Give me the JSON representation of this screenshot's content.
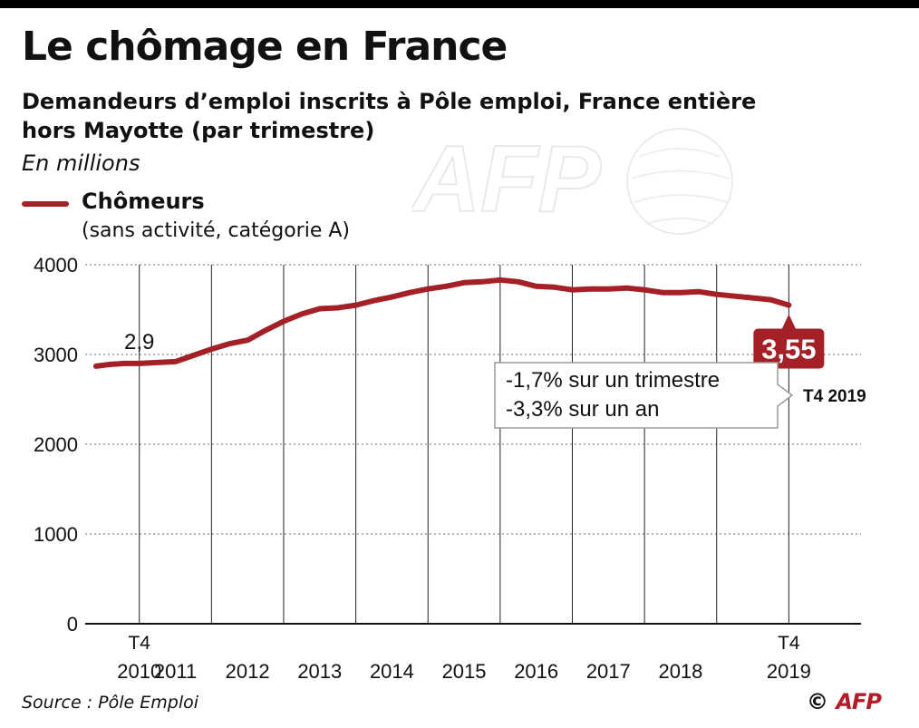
{
  "header": {
    "title": "Le chômage en France",
    "subtitle": "Demandeurs d’emploi inscrits à Pôle emploi, France entière hors Mayotte (par trimestre)",
    "unit": "En millions"
  },
  "legend": {
    "label": "Chômeurs",
    "note": "(sans activité, catégorie A)",
    "color": "#a32126"
  },
  "chart_data": {
    "type": "line",
    "title": "Le chômage en France",
    "xlabel": "",
    "ylabel": "",
    "ylim": [
      0,
      4000
    ],
    "yticks": [
      0,
      1000,
      2000,
      3000,
      4000
    ],
    "xlim": [
      2009.25,
      2020.0
    ],
    "xticks": [
      {
        "value": 2010,
        "line1": "T4",
        "line2": "2010"
      },
      {
        "value": 2011,
        "line1": "",
        "line2": "2011"
      },
      {
        "value": 2012,
        "line1": "",
        "line2": "2012"
      },
      {
        "value": 2013,
        "line1": "",
        "line2": "2013"
      },
      {
        "value": 2014,
        "line1": "",
        "line2": "2014"
      },
      {
        "value": 2015,
        "line1": "",
        "line2": "2015"
      },
      {
        "value": 2016,
        "line1": "",
        "line2": "2016"
      },
      {
        "value": 2017,
        "line1": "",
        "line2": "2017"
      },
      {
        "value": 2018,
        "line1": "",
        "line2": "2018"
      },
      {
        "value": 2019,
        "line1": "T4",
        "line2": "2019"
      }
    ],
    "grid": true,
    "series": [
      {
        "name": "Chômeurs",
        "color": "#a32126",
        "x": [
          2009.4,
          2009.6,
          2009.8,
          2010.0,
          2010.25,
          2010.5,
          2010.75,
          2011.0,
          2011.25,
          2011.5,
          2011.75,
          2012.0,
          2012.25,
          2012.5,
          2012.75,
          2013.0,
          2013.25,
          2013.5,
          2013.75,
          2014.0,
          2014.25,
          2014.5,
          2014.75,
          2015.0,
          2015.25,
          2015.5,
          2015.75,
          2016.0,
          2016.25,
          2016.5,
          2016.75,
          2017.0,
          2017.25,
          2017.5,
          2017.75,
          2018.0,
          2018.25,
          2018.5,
          2018.75,
          2019.0
        ],
        "values": [
          2870,
          2890,
          2900,
          2900,
          2910,
          2920,
          2990,
          3060,
          3120,
          3160,
          3270,
          3370,
          3450,
          3510,
          3520,
          3550,
          3600,
          3640,
          3690,
          3730,
          3760,
          3800,
          3810,
          3830,
          3810,
          3760,
          3750,
          3720,
          3730,
          3730,
          3740,
          3720,
          3690,
          3690,
          3700,
          3670,
          3650,
          3630,
          3610,
          3550
        ]
      }
    ],
    "annotations": [
      {
        "id": "start",
        "label": "2,9",
        "x": 2010,
        "y": 2900
      },
      {
        "id": "end",
        "label": "3,55",
        "x": 2019,
        "y": 3550,
        "period": "T4 2019"
      }
    ],
    "callout": {
      "line1": "-1,7% sur un trimestre",
      "line2": "-3,3% sur un an"
    }
  },
  "footer": {
    "source": "Source : Pôle Emploi",
    "copyright_symbol": "©",
    "brand": "AFP"
  }
}
